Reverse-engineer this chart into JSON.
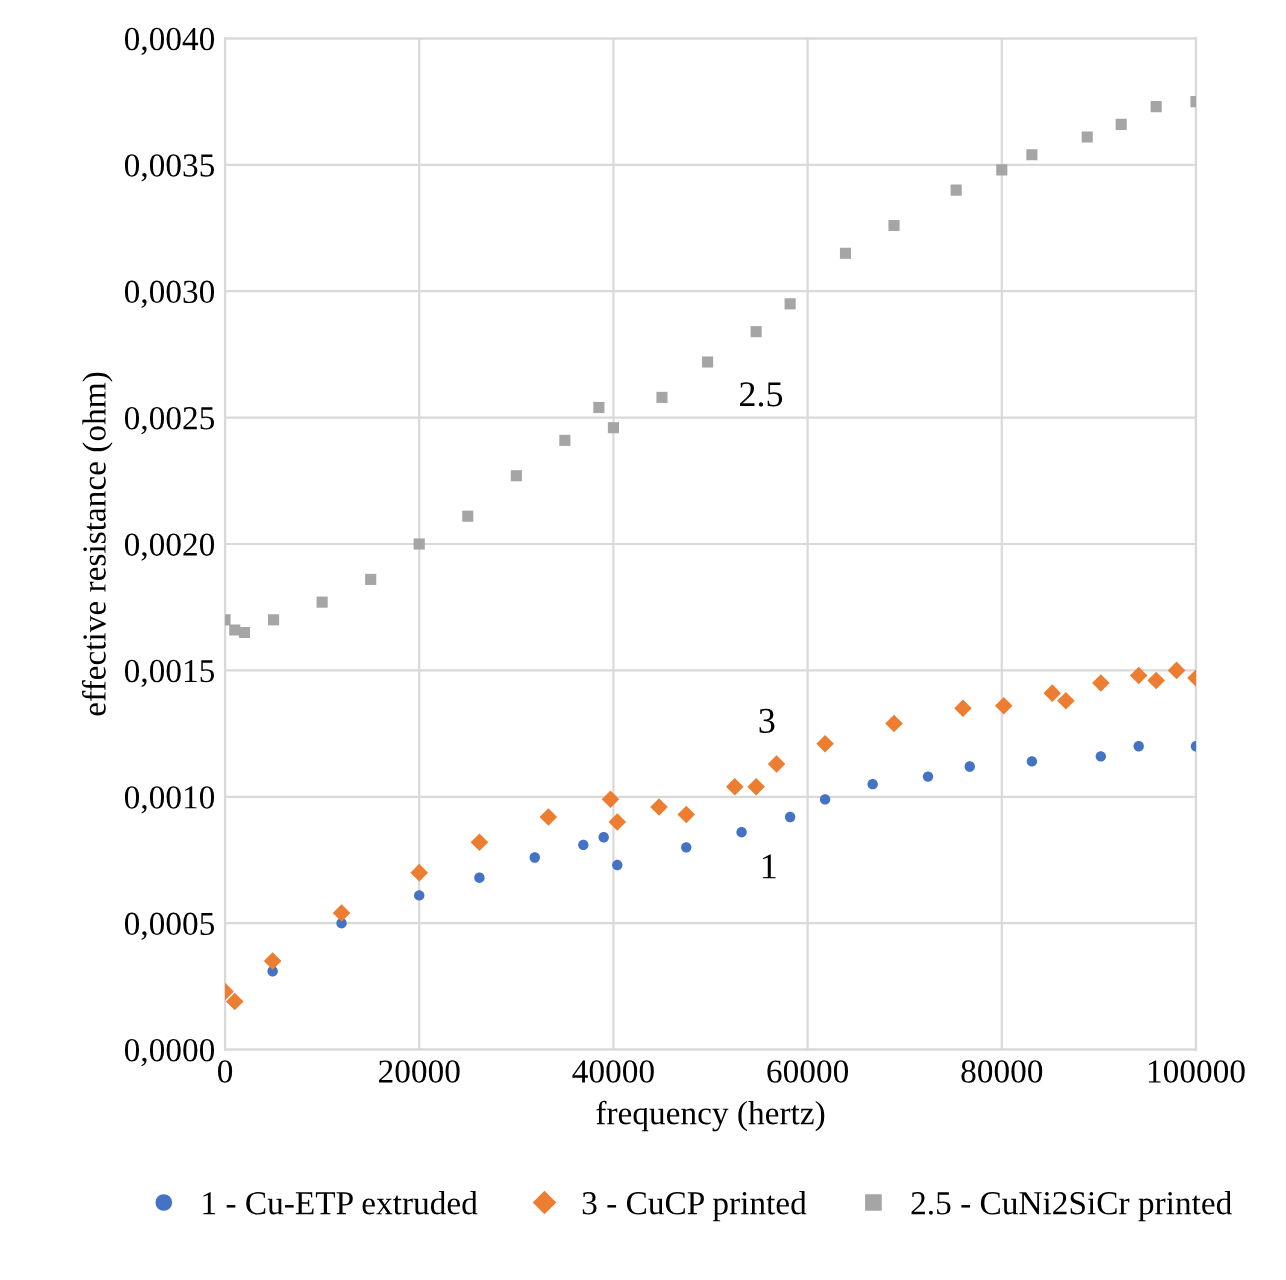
{
  "chart_data": {
    "type": "scatter",
    "xlabel": "frequency (hertz)",
    "ylabel": "effective resistance (ohm)",
    "xlim": [
      0,
      100000
    ],
    "xticks": [
      0,
      20000,
      40000,
      60000,
      80000,
      100000
    ],
    "ylim": [
      0,
      0.004
    ],
    "yticks": [
      {
        "value": 0,
        "label": "0,0000"
      },
      {
        "value": 0.0005,
        "label": "0,0005"
      },
      {
        "value": 0.001,
        "label": "0,0010"
      },
      {
        "value": 0.0015,
        "label": "0,0015"
      },
      {
        "value": 0.002,
        "label": "0,0020"
      },
      {
        "value": 0.0025,
        "label": "0,0025"
      },
      {
        "value": 0.003,
        "label": "0,0030"
      },
      {
        "value": 0.0035,
        "label": "0,0035"
      },
      {
        "value": 0.004,
        "label": "0,0040"
      }
    ],
    "grid": true,
    "legend": "bottom",
    "series": [
      {
        "name": "1 - Cu-ETP extruded",
        "color": "#4472c4",
        "marker": "circle",
        "x": [
          4900,
          12000,
          20000,
          26200,
          31900,
          36900,
          39000,
          40400,
          47500,
          53200,
          58200,
          61800,
          66700,
          72400,
          76700,
          83100,
          90200,
          94100,
          100000
        ],
        "values": [
          0.00031,
          0.0005,
          0.00061,
          0.00068,
          0.00076,
          0.00081,
          0.00084,
          0.00073,
          0.0008,
          0.00086,
          0.00092,
          0.00099,
          0.00105,
          0.00108,
          0.00112,
          0.00114,
          0.00116,
          0.0012,
          0.0012
        ]
      },
      {
        "name": "3 - CuCP printed",
        "color": "#ed7d31",
        "marker": "diamond",
        "x": [
          0,
          1000,
          4900,
          12000,
          20000,
          26200,
          33300,
          39700,
          40400,
          44700,
          47500,
          52500,
          54700,
          56800,
          61800,
          68900,
          76000,
          80200,
          85200,
          86600,
          90200,
          94100,
          95900,
          98000,
          100000
        ],
        "values": [
          0.00023,
          0.00019,
          0.00035,
          0.00054,
          0.0007,
          0.00082,
          0.00092,
          0.00099,
          0.0009,
          0.00096,
          0.00093,
          0.00104,
          0.00104,
          0.00113,
          0.00121,
          0.00129,
          0.00135,
          0.00136,
          0.00141,
          0.00138,
          0.00145,
          0.00148,
          0.00146,
          0.0015,
          0.00147
        ]
      },
      {
        "name": "2.5 - CuNi2SiCr printed",
        "color": "#a5a5a5",
        "marker": "square",
        "x": [
          0,
          1000,
          2000,
          5000,
          10000,
          15000,
          20000,
          25000,
          30000,
          35000,
          38500,
          40000,
          45000,
          49700,
          54700,
          58200,
          63900,
          68900,
          75300,
          80000,
          83100,
          88800,
          92300,
          95900,
          100000
        ],
        "values": [
          0.0017,
          0.00166,
          0.00165,
          0.0017,
          0.00177,
          0.00186,
          0.002,
          0.00211,
          0.00227,
          0.00241,
          0.00254,
          0.00246,
          0.00258,
          0.00272,
          0.00284,
          0.00295,
          0.00315,
          0.00326,
          0.0034,
          0.00348,
          0.00354,
          0.00361,
          0.00366,
          0.00373,
          0.00375
        ]
      }
    ],
    "annotations": [
      "2.5",
      "3",
      "1"
    ]
  }
}
